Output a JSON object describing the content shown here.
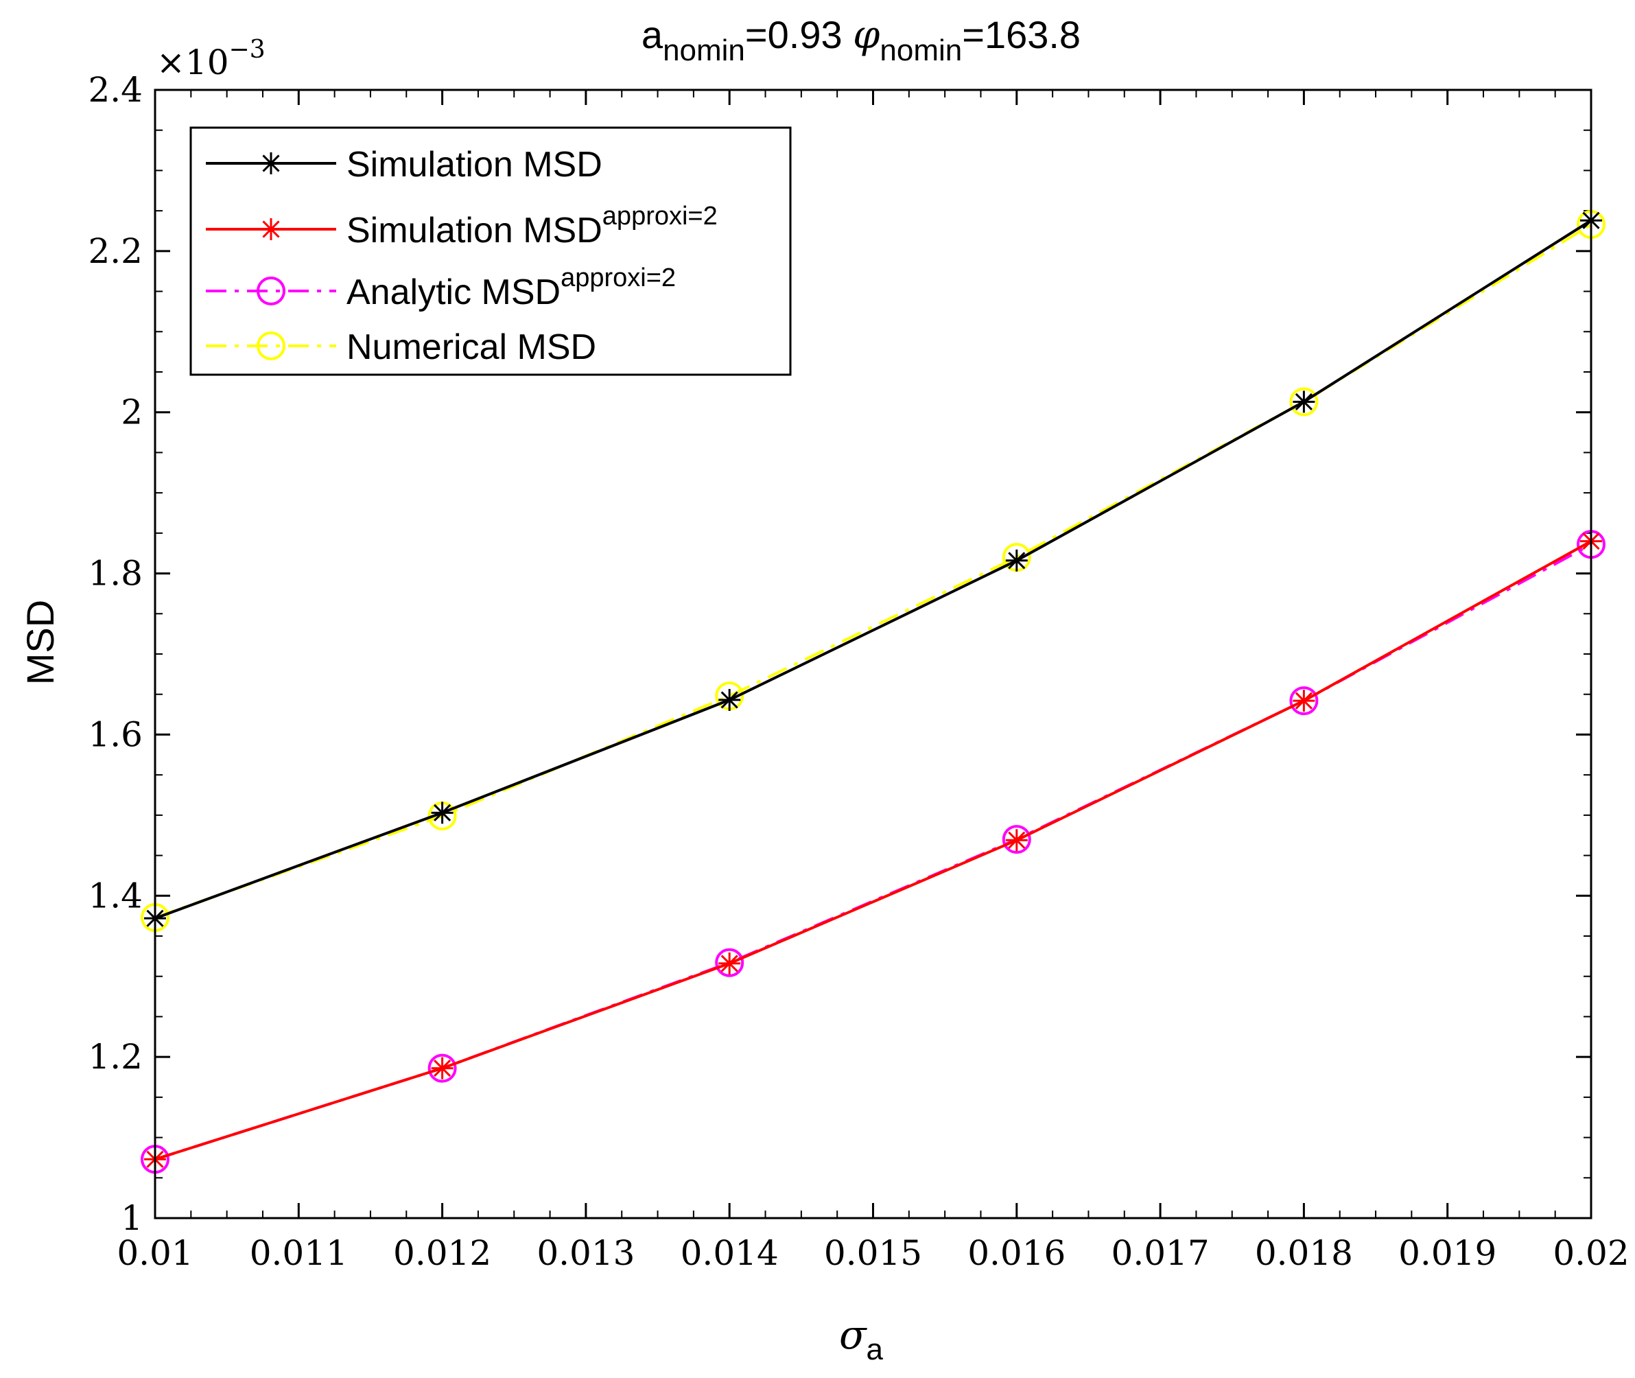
{
  "chart_data": {
    "type": "line",
    "title_main": "a",
    "title_sub1": "nomin",
    "title_mid": "=0.93 ",
    "title_phi": "φ",
    "title_sub2": "nomin",
    "title_end": "=163.8",
    "xlabel_main": "σ",
    "xlabel_sub": "a",
    "ylabel": "MSD",
    "y_multiplier_base": "×10",
    "y_multiplier_exp": "−3",
    "xlim": [
      0.01,
      0.02
    ],
    "ylim": [
      1,
      2.4
    ],
    "x_ticks": [
      0.01,
      0.011,
      0.012,
      0.013,
      0.014,
      0.015,
      0.016,
      0.017,
      0.018,
      0.019,
      0.02
    ],
    "x_tick_labels": [
      "0.01",
      "0.011",
      "0.012",
      "0.013",
      "0.014",
      "0.015",
      "0.016",
      "0.017",
      "0.018",
      "0.019",
      "0.02"
    ],
    "y_ticks": [
      1,
      1.2,
      1.4,
      1.6,
      1.8,
      2,
      2.2,
      2.4
    ],
    "y_tick_labels": [
      "1",
      "1.2",
      "1.4",
      "1.6",
      "1.8",
      "2",
      "2.2",
      "2.4"
    ],
    "grid": false,
    "legend_position": "top-left",
    "x": [
      0.01,
      0.012,
      0.014,
      0.016,
      0.018,
      0.02
    ],
    "series": [
      {
        "name": "Simulation MSD",
        "name_sup": "",
        "color": "#000000",
        "dash": "solid",
        "marker": "asterisk",
        "values": [
          1.372,
          1.503,
          1.643,
          1.816,
          2.013,
          2.238
        ]
      },
      {
        "name": "Simulation MSD",
        "name_sup": "approxi=2",
        "color": "#ff0000",
        "dash": "solid",
        "marker": "asterisk",
        "values": [
          1.073,
          1.186,
          1.316,
          1.469,
          1.642,
          1.84
        ]
      },
      {
        "name": "Analytic MSD",
        "name_sup": "approxi=2",
        "color": "#ff00ff",
        "dash": "dashdot",
        "marker": "circle",
        "values": [
          1.073,
          1.186,
          1.317,
          1.47,
          1.642,
          1.836
        ]
      },
      {
        "name": "Numerical MSD",
        "name_sup": "",
        "color": "#ffff00",
        "dash": "dashdot",
        "marker": "circle",
        "values": [
          1.373,
          1.499,
          1.648,
          1.82,
          2.013,
          2.233
        ]
      }
    ]
  }
}
